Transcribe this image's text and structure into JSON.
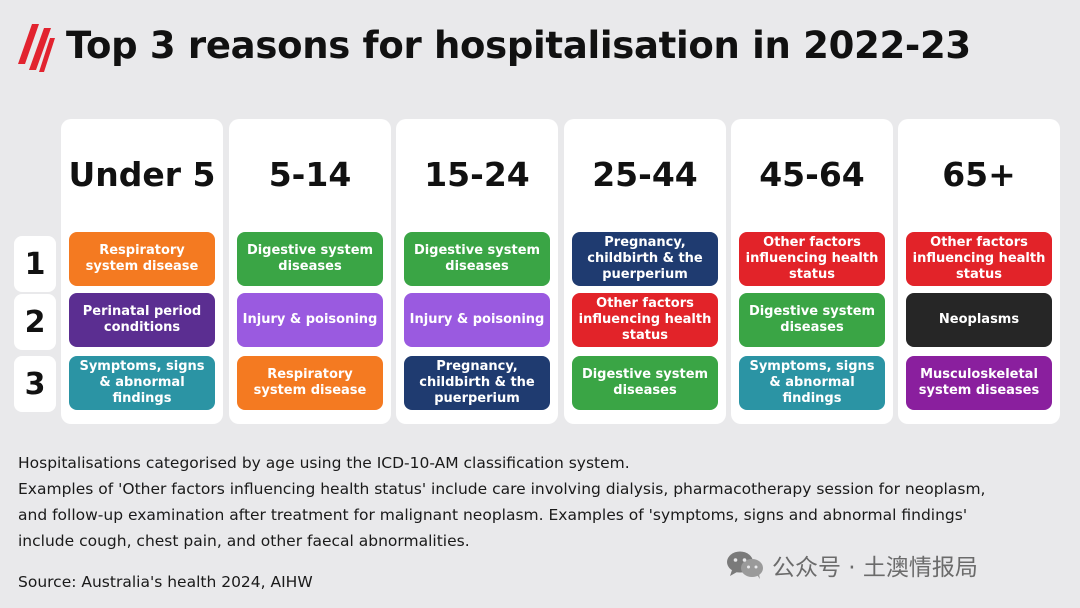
{
  "title": "Top 3 reasons for hospitalisation in 2022-23",
  "colors": {
    "brand_red": "#e2232f",
    "background": "#e9e9eb",
    "orange": "#f47a21",
    "green": "#3aa545",
    "navy": "#1f3b70",
    "red": "#e22329",
    "purple": "#5b2e91",
    "lavender": "#9a5ae0",
    "teal": "#2b94a4",
    "black": "#262626",
    "magenta": "#8a1f9e"
  },
  "ranks": [
    "1",
    "2",
    "3"
  ],
  "columns": [
    {
      "label": "Under 5",
      "reasons": [
        {
          "text": "Respiratory system disease",
          "color": "orange"
        },
        {
          "text": "Perinatal period conditions",
          "color": "purple"
        },
        {
          "text": "Symptoms, signs & abnormal findings",
          "color": "teal"
        }
      ]
    },
    {
      "label": "5-14",
      "reasons": [
        {
          "text": "Digestive system diseases",
          "color": "green"
        },
        {
          "text": "Injury & poisoning",
          "color": "lavender"
        },
        {
          "text": "Respiratory system disease",
          "color": "orange"
        }
      ]
    },
    {
      "label": "15-24",
      "reasons": [
        {
          "text": "Digestive system diseases",
          "color": "green"
        },
        {
          "text": "Injury & poisoning",
          "color": "lavender"
        },
        {
          "text": "Pregnancy, childbirth & the puerperium",
          "color": "navy"
        }
      ]
    },
    {
      "label": "25-44",
      "reasons": [
        {
          "text": "Pregnancy, childbirth & the puerperium",
          "color": "navy"
        },
        {
          "text": "Other factors influencing health status",
          "color": "red"
        },
        {
          "text": "Digestive system diseases",
          "color": "green"
        }
      ]
    },
    {
      "label": "45-64",
      "reasons": [
        {
          "text": "Other factors influencing health status",
          "color": "red"
        },
        {
          "text": "Digestive system diseases",
          "color": "green"
        },
        {
          "text": "Symptoms, signs & abnormal findings",
          "color": "teal"
        }
      ]
    },
    {
      "label": "65+",
      "reasons": [
        {
          "text": "Other factors influencing health status",
          "color": "red"
        },
        {
          "text": "Neoplasms",
          "color": "black"
        },
        {
          "text": "Musculoskeletal system diseases",
          "color": "magenta"
        }
      ]
    }
  ],
  "notes": [
    "Hospitalisations categorised by age using the ICD-10-AM classification system.",
    "Examples of 'Other factors influencing health status' include care involving dialysis, pharmacotherapy session for neoplasm, and follow-up examination after treatment for malignant neoplasm. Examples of 'symptoms, signs and abnormal findings' include cough, chest pain, and other faecal abnormalities."
  ],
  "source": "Source: Australia's health 2024, AIHW",
  "watermark": {
    "icon": "wechat-icon",
    "text": "公众号 · 土澳情报局"
  },
  "logo_icon": "sbs-logo-icon"
}
